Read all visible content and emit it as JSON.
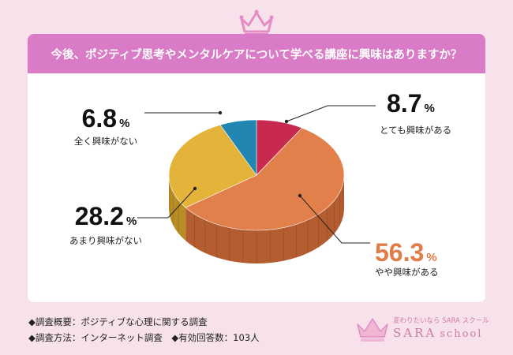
{
  "title": "今後、ポジティブ思考やメンタルケアについて学べる講座に興味はありますか？",
  "colors": {
    "background": "#f7e1ea",
    "banner": "#d97bc6",
    "crown": "#e58cc4",
    "brand": "#d07aa3"
  },
  "chart_data": {
    "type": "pie",
    "style": "3d",
    "unit": "%",
    "slices": [
      {
        "label": "とても興味がある",
        "value": 8.7,
        "color": "#c8294e",
        "side_color": "#8d1d37",
        "value_color": "#111111"
      },
      {
        "label": "やや興味がある",
        "value": 56.3,
        "color": "#e1804a",
        "side_color": "#b45d31",
        "value_color": "#e07c46"
      },
      {
        "label": "あまり興味がない",
        "value": 28.2,
        "color": "#e3b33a",
        "side_color": "#b88d25",
        "value_color": "#111111"
      },
      {
        "label": "全く興味がない",
        "value": 6.8,
        "color": "#2286b3",
        "side_color": "#186183",
        "value_color": "#111111"
      }
    ]
  },
  "footer": {
    "line1": "◆調査概要：ポジティブな心理に関する調査",
    "line2": "◆調査方法：インターネット調査　◆有効回答数：103人"
  },
  "brand": {
    "tagline": "変わりたいなら SARA スクール",
    "name": "SARA",
    "sub": "school",
    "icon": "crown-icon"
  }
}
